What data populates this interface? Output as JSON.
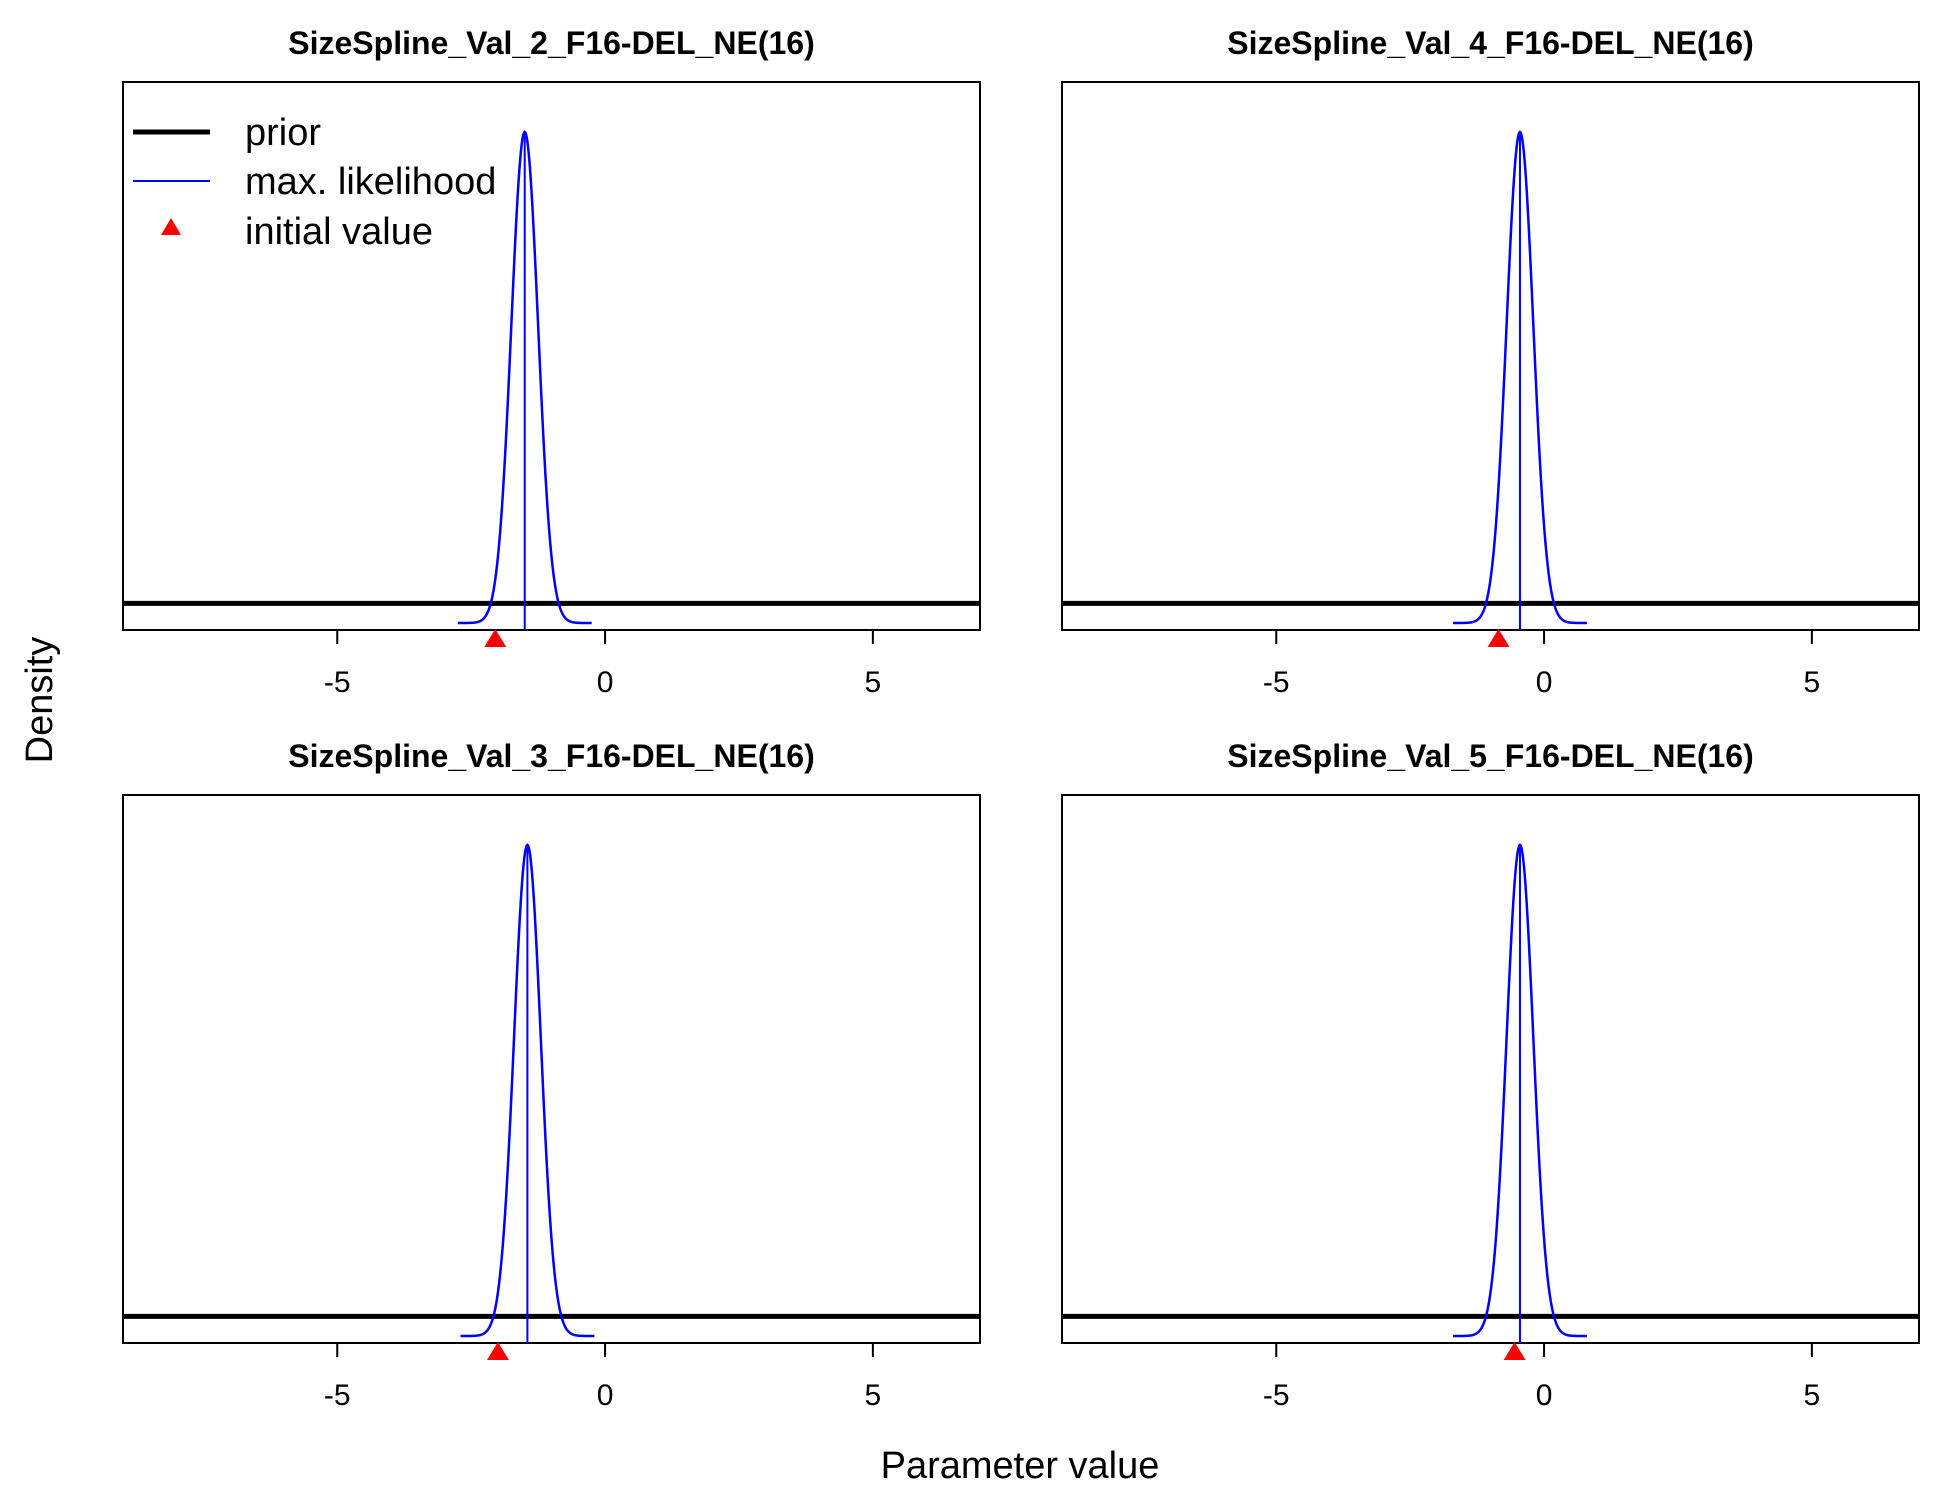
{
  "figure": {
    "ylabel": "Density",
    "xlabel": "Parameter value",
    "legend": {
      "placement": "top-left of first panel",
      "items": [
        {
          "label": "prior",
          "color": "#000000",
          "style": "thick-line"
        },
        {
          "label": "max. likelihood",
          "color": "#0000ff",
          "style": "thin-line"
        },
        {
          "label": "initial value",
          "color": "#ff0000",
          "style": "triangle"
        }
      ]
    }
  },
  "chart_data": [
    {
      "type": "line",
      "title": "SizeSpline_Val_2_F16-DEL_NE(16)",
      "xlim": [
        -9,
        7
      ],
      "xticks": [
        -5,
        0,
        5
      ],
      "tick_labels": [
        "-5",
        "0",
        "5"
      ],
      "grid": false,
      "prior_level": 0.04,
      "mle_mean": -1.5,
      "mle_sd": 0.25,
      "initial_value": -2.05
    },
    {
      "type": "line",
      "title": "SizeSpline_Val_4_F16-DEL_NE(16)",
      "xlim": [
        -9,
        7
      ],
      "xticks": [
        -5,
        0,
        5
      ],
      "tick_labels": [
        "-5",
        "0",
        "5"
      ],
      "grid": false,
      "prior_level": 0.04,
      "mle_mean": -0.45,
      "mle_sd": 0.25,
      "initial_value": -0.85
    },
    {
      "type": "line",
      "title": "SizeSpline_Val_3_F16-DEL_NE(16)",
      "xlim": [
        -9,
        7
      ],
      "xticks": [
        -5,
        0,
        5
      ],
      "tick_labels": [
        "-5",
        "0",
        "5"
      ],
      "grid": false,
      "prior_level": 0.04,
      "mle_mean": -1.45,
      "mle_sd": 0.25,
      "initial_value": -2.0
    },
    {
      "type": "line",
      "title": "SizeSpline_Val_5_F16-DEL_NE(16)",
      "xlim": [
        -9,
        7
      ],
      "xticks": [
        -5,
        0,
        5
      ],
      "tick_labels": [
        "-5",
        "0",
        "5"
      ],
      "grid": false,
      "prior_level": 0.04,
      "mle_mean": -0.45,
      "mle_sd": 0.25,
      "initial_value": -0.55
    }
  ]
}
